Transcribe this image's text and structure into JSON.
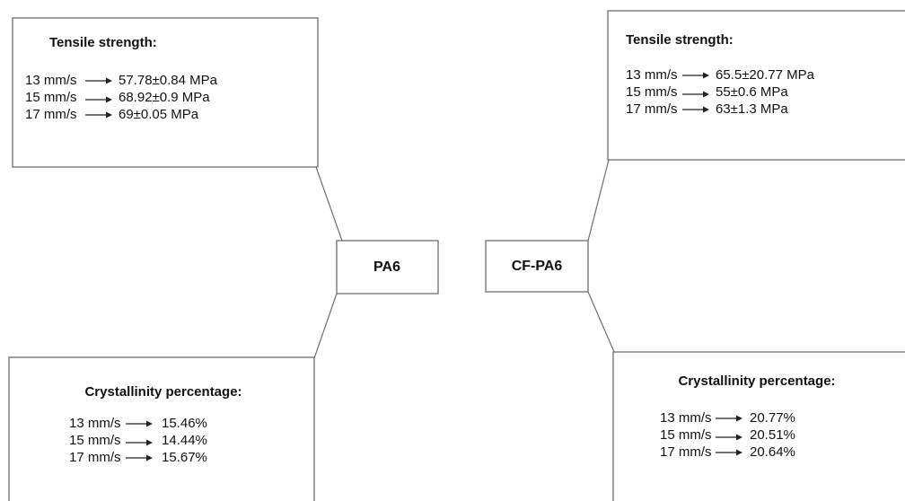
{
  "pa6": {
    "label": "PA6",
    "tensile": {
      "title": "Tensile strength:",
      "rows": [
        {
          "speed": "13 mm/s",
          "value": "57.78±0.84 MPa"
        },
        {
          "speed": "15 mm/s",
          "value": "68.92±0.9 MPa"
        },
        {
          "speed": "17 mm/s",
          "value": "69±0.05 MPa"
        }
      ]
    },
    "crystallinity": {
      "title": "Crystallinity percentage:",
      "rows": [
        {
          "speed": "13 mm/s",
          "value": "15.46%"
        },
        {
          "speed": "15 mm/s",
          "value": "14.44%"
        },
        {
          "speed": "17 mm/s",
          "value": "15.67%"
        }
      ]
    }
  },
  "cf_pa6": {
    "label": "CF-PA6",
    "tensile": {
      "title": "Tensile strength:",
      "rows": [
        {
          "speed": "13 mm/s",
          "value": "65.5±20.77 MPa"
        },
        {
          "speed": "15 mm/s",
          "value": "55±0.6 MPa"
        },
        {
          "speed": "17 mm/s",
          "value": "63±1.3 MPa"
        }
      ]
    },
    "crystallinity": {
      "title": "Crystallinity percentage:",
      "rows": [
        {
          "speed": "13 mm/s",
          "value": "20.77%"
        },
        {
          "speed": "15 mm/s",
          "value": "20.51%"
        },
        {
          "speed": "17 mm/s",
          "value": "20.64%"
        }
      ]
    }
  }
}
